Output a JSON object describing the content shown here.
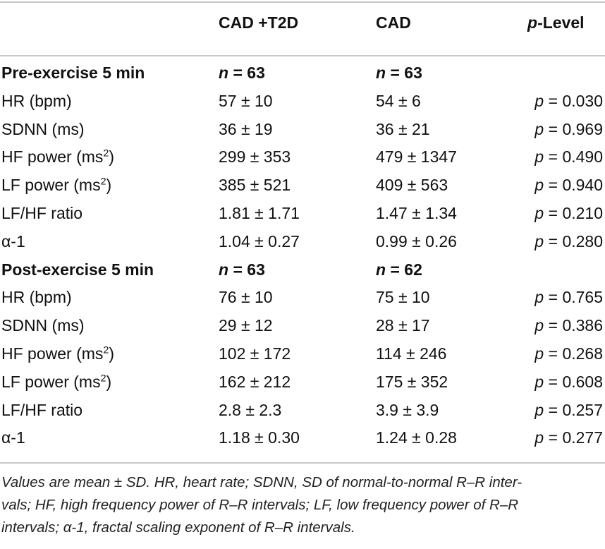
{
  "columns": {
    "group1": "CAD +T2D",
    "group2": "CAD",
    "plevel_italic": "p",
    "plevel_rest": "-Level"
  },
  "sections": [
    {
      "title": "Pre-exercise 5 min",
      "n1": "63",
      "n2": "63",
      "rows": [
        {
          "label": "HR (bpm)",
          "label_sup": "",
          "label_tail": "",
          "v1": "57 ± 10",
          "v2": "54 ± 6",
          "p": "0.030"
        },
        {
          "label": "SDNN (ms)",
          "label_sup": "",
          "label_tail": "",
          "v1": "36 ± 19",
          "v2": "36 ± 21",
          "p": "0.969"
        },
        {
          "label": "HF power (ms",
          "label_sup": "2",
          "label_tail": ")",
          "v1": "299 ± 353",
          "v2": "479 ± 1347",
          "p": "0.490"
        },
        {
          "label": "LF power (ms",
          "label_sup": "2",
          "label_tail": ")",
          "v1": "385 ± 521",
          "v2": "409 ± 563",
          "p": "0.940"
        },
        {
          "label": "LF/HF ratio",
          "label_sup": "",
          "label_tail": "",
          "v1": "1.81 ± 1.71",
          "v2": "1.47 ± 1.34",
          "p": "0.210"
        },
        {
          "label": "α-1",
          "label_sup": "",
          "label_tail": "",
          "v1": "1.04 ± 0.27",
          "v2": "0.99 ± 0.26",
          "p": "0.280"
        }
      ]
    },
    {
      "title": "Post-exercise 5 min",
      "n1": "63",
      "n2": "62",
      "rows": [
        {
          "label": "HR (bpm)",
          "label_sup": "",
          "label_tail": "",
          "v1": "76 ± 10",
          "v2": "75 ± 10",
          "p": "0.765"
        },
        {
          "label": "SDNN (ms)",
          "label_sup": "",
          "label_tail": "",
          "v1": "29 ± 12",
          "v2": "28 ± 17",
          "p": "0.386"
        },
        {
          "label": "HF power (ms",
          "label_sup": "2",
          "label_tail": ")",
          "v1": "102 ± 172",
          "v2": "114 ± 246",
          "p": "0.268"
        },
        {
          "label": "LF power (ms",
          "label_sup": "2",
          "label_tail": ")",
          "v1": "162 ± 212",
          "v2": "175 ± 352",
          "p": "0.608"
        },
        {
          "label": "LF/HF ratio",
          "label_sup": "",
          "label_tail": "",
          "v1": "2.8 ± 2.3",
          "v2": "3.9 ± 3.9",
          "p": "0.257"
        },
        {
          "label": "α-1",
          "label_sup": "",
          "label_tail": "",
          "v1": "1.18 ± 0.30",
          "v2": "1.24 ± 0.28",
          "p": "0.277"
        }
      ]
    }
  ],
  "symbols": {
    "n": "n",
    "p": "p",
    "eq": " = "
  },
  "footnote": {
    "line1": "Values are mean ± SD. HR, heart rate; SDNN, SD of normal-to-normal R–R inter-",
    "line2": "vals; HF, high frequency power of R–R intervals; LF, low frequency power of R–R",
    "line3": "intervals; α-1, fractal scaling exponent of R–R intervals."
  }
}
